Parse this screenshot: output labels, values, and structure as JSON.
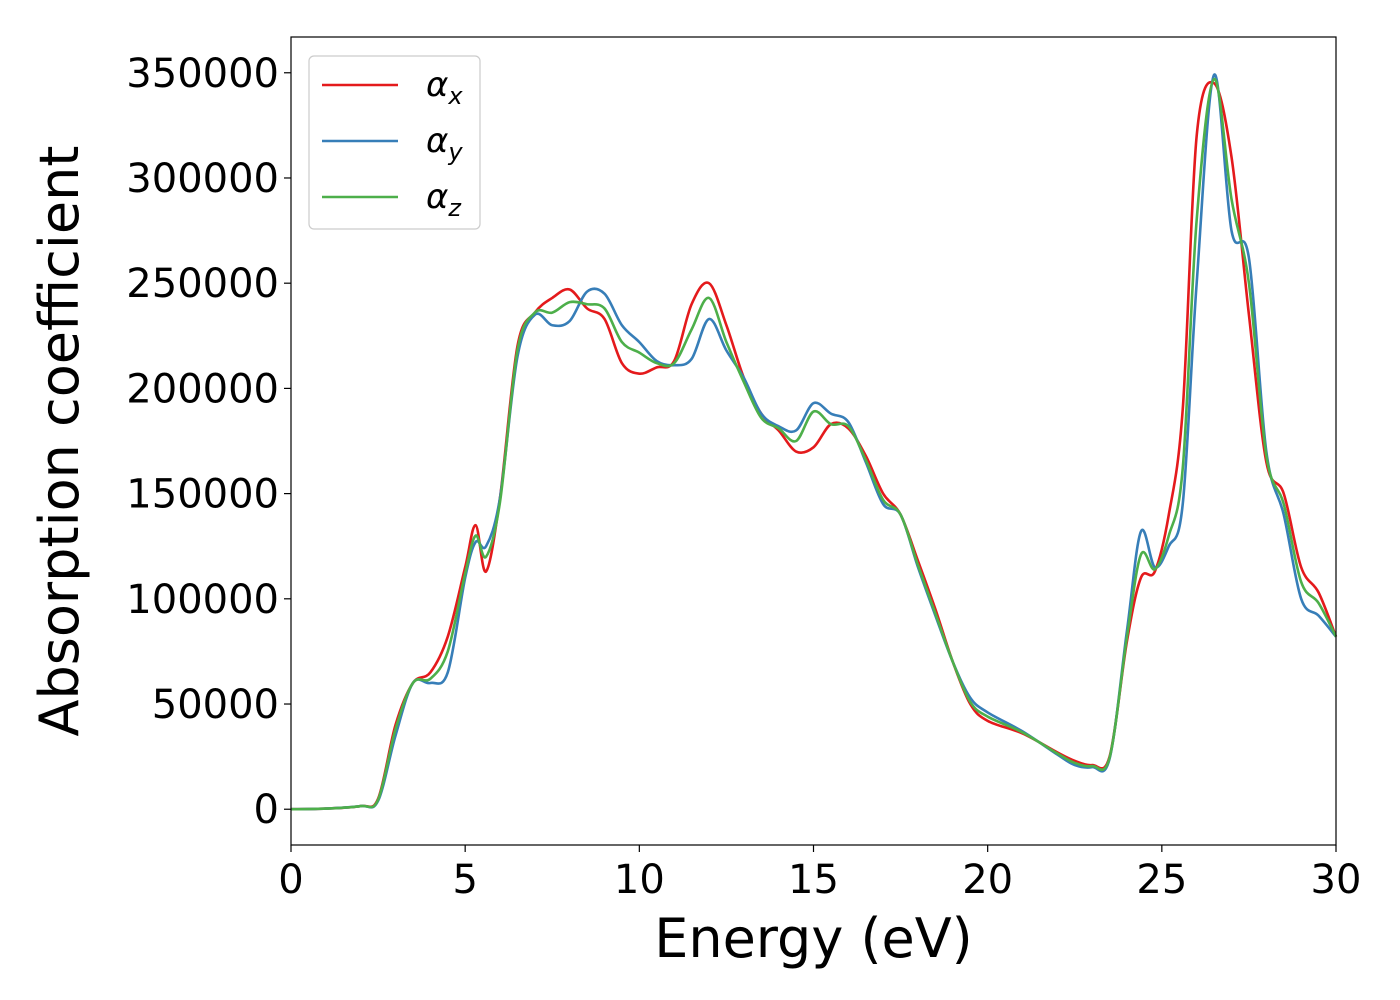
{
  "chart_data": {
    "type": "line",
    "title": "",
    "xlabel": "Energy (eV)",
    "ylabel": "Absorption coefficient",
    "xlim": [
      0,
      30
    ],
    "ylim": [
      -17000,
      367000
    ],
    "xticks": [
      0,
      5,
      10,
      15,
      20,
      25,
      30
    ],
    "yticks": [
      0,
      50000,
      100000,
      150000,
      200000,
      250000,
      300000,
      350000
    ],
    "grid": false,
    "legend_position": "top-left",
    "x": [
      0,
      1,
      2,
      2.5,
      3,
      3.5,
      4,
      4.5,
      5,
      5.3,
      5.6,
      6,
      6.5,
      7,
      7.5,
      8,
      8.5,
      9,
      9.5,
      10,
      10.5,
      11,
      11.5,
      12,
      12.5,
      13,
      13.5,
      14,
      14.5,
      15,
      15.5,
      16,
      16.5,
      17,
      17.5,
      18,
      18.5,
      19,
      19.5,
      20,
      21,
      22,
      22.5,
      23,
      23.5,
      24,
      24.4,
      24.8,
      25.2,
      25.6,
      26,
      26.5,
      27,
      27.5,
      28,
      28.5,
      29,
      29.5,
      30
    ],
    "series": [
      {
        "name": "α_x",
        "color": "#e41a1c",
        "values": [
          0,
          300,
          1500,
          5000,
          40000,
          60000,
          65000,
          82000,
          115000,
          135000,
          113000,
          148000,
          220000,
          236000,
          243000,
          247000,
          238000,
          233000,
          212000,
          207000,
          210000,
          213000,
          240000,
          250000,
          230000,
          205000,
          188000,
          180000,
          170000,
          172000,
          183000,
          181000,
          168000,
          150000,
          140000,
          118000,
          95000,
          70000,
          50000,
          42000,
          36000,
          27000,
          23000,
          21000,
          25000,
          80000,
          110000,
          113000,
          140000,
          190000,
          320000,
          345000,
          310000,
          235000,
          165000,
          150000,
          115000,
          103000,
          82000
        ]
      },
      {
        "name": "α_y",
        "color": "#377eb8",
        "values": [
          0,
          300,
          1500,
          4000,
          35000,
          60000,
          60000,
          65000,
          110000,
          127000,
          125000,
          148000,
          215000,
          235000,
          230000,
          232000,
          246000,
          245000,
          230000,
          222000,
          213000,
          211000,
          214000,
          233000,
          218000,
          205000,
          188000,
          182000,
          180000,
          193000,
          188000,
          184000,
          165000,
          145000,
          140000,
          115000,
          92000,
          70000,
          53000,
          46000,
          37000,
          26000,
          21000,
          20000,
          24000,
          85000,
          132000,
          115000,
          125000,
          145000,
          250000,
          349000,
          275000,
          262000,
          170000,
          140000,
          100000,
          92000,
          82000
        ]
      },
      {
        "name": "α_z",
        "color": "#4daf4a",
        "values": [
          0,
          300,
          1500,
          4500,
          38000,
          60000,
          62000,
          75000,
          112000,
          130000,
          120000,
          146000,
          218000,
          236000,
          236000,
          241000,
          240000,
          238000,
          222000,
          217000,
          212000,
          212000,
          228000,
          243000,
          222000,
          203000,
          186000,
          181000,
          175000,
          189000,
          183000,
          182000,
          166000,
          147000,
          140000,
          116000,
          93000,
          70000,
          51000,
          44000,
          36500,
          26500,
          22000,
          20500,
          24500,
          82000,
          121000,
          114000,
          130000,
          162000,
          280000,
          347000,
          290000,
          250000,
          168000,
          145000,
          108000,
          98000,
          82000
        ]
      }
    ]
  }
}
